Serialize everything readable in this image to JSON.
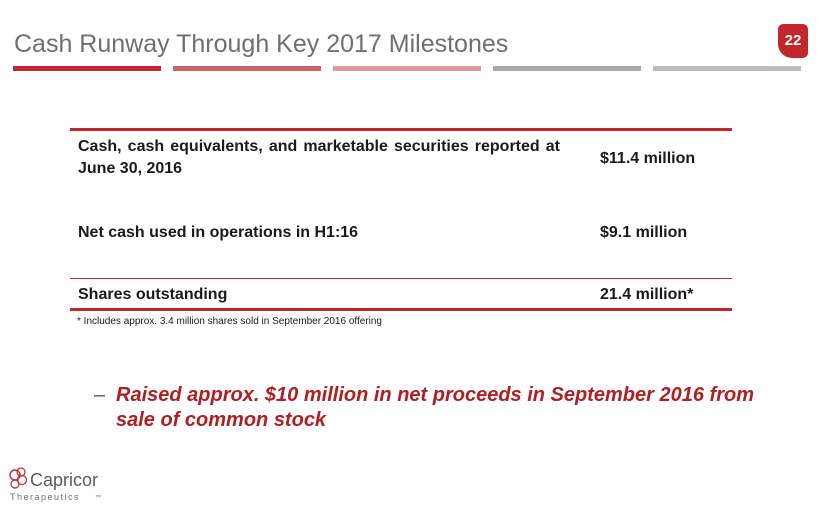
{
  "header": {
    "title": "Cash Runway Through Key 2017 Milestones",
    "page_number": "22"
  },
  "table": {
    "rows": [
      {
        "label": "Cash, cash equivalents, and marketable securities reported at June 30, 2016",
        "value": "$11.4 million"
      },
      {
        "label": "Net cash used in operations in H1:16",
        "value": "$9.1 million"
      },
      {
        "label": "Shares outstanding",
        "value": "21.4 million*"
      }
    ],
    "footnote": "* Includes approx. 3.4 million  shares sold in September 2016 offering"
  },
  "bullet": {
    "marker": "–",
    "text": "Raised approx. $10 million in net proceeds in September 2016 from sale of common stock"
  },
  "logo": {
    "name": "Capricor",
    "subtitle": "Therapeutics",
    "mark": "™"
  },
  "colors": {
    "accent": "#c1272d",
    "title_gray": "#6d6f73",
    "bullet_red": "#b01e23"
  }
}
